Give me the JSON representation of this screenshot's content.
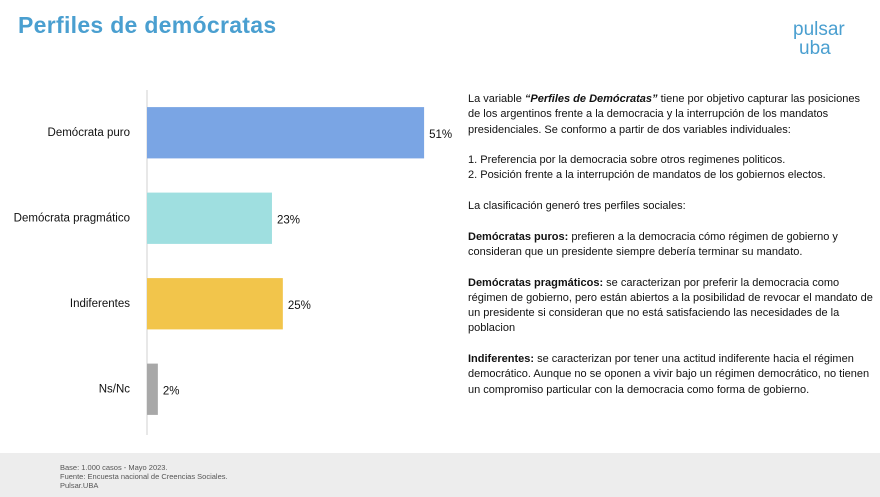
{
  "chart_data": {
    "type": "bar",
    "title": "Perfiles de demócratas",
    "categories": [
      "Demócrata puro",
      "Demócrata pragmático",
      "Indiferentes",
      "Ns/Nc"
    ],
    "values": [
      51,
      23,
      25,
      2
    ],
    "value_labels": [
      "51%",
      "23%",
      "25%",
      "2%"
    ],
    "colors": [
      "#7aa5e4",
      "#9fdfe0",
      "#f2c54b",
      "#a8a8a8"
    ],
    "xlim": [
      0,
      60
    ]
  },
  "logo": {
    "line1": "pulsar",
    "line2": "uba"
  },
  "description": {
    "intro": {
      "before": "La variable ",
      "emphasis": "“Perfiles de Demócratas”",
      "after": " tiene por objetivo capturar las posiciones de los argentinos frente a la democracia y la interrupción de los mandatos presidenciales. Se conformo a partir de dos variables individuales:"
    },
    "list": [
      "1. Preferencia por la democracia sobre otros regimenes politicos.",
      "2. Posición frente a la interrupción de mandatos de los gobiernos electos."
    ],
    "classification": "La clasificación generó tres perfiles sociales:",
    "profiles": [
      {
        "term": "Demócratas puros:",
        "text": " prefieren a la democracia cómo régimen de gobierno y consideran que un presidente siempre debería terminar su mandato."
      },
      {
        "term": "Demócratas pragmáticos:",
        "text": " se caracterizan por preferir la democracia como régimen de gobierno, pero están abiertos a la posibilidad de revocar el mandato de un presidente si consideran que no está satisfaciendo las necesidades de la poblacion"
      },
      {
        "term": "Indiferentes:",
        "text": " se caracterizan por tener una actitud indiferente hacia el régimen democrático. Aunque no se oponen a vivir bajo un régimen democrático, no tienen un compromiso particular  con la democracia como forma de gobierno."
      }
    ]
  },
  "footer": [
    "Base:  1.000 casos - Mayo 2023.",
    "Fuente: Encuesta nacional de Creencias Sociales.",
    "Pulsar.UBA"
  ]
}
